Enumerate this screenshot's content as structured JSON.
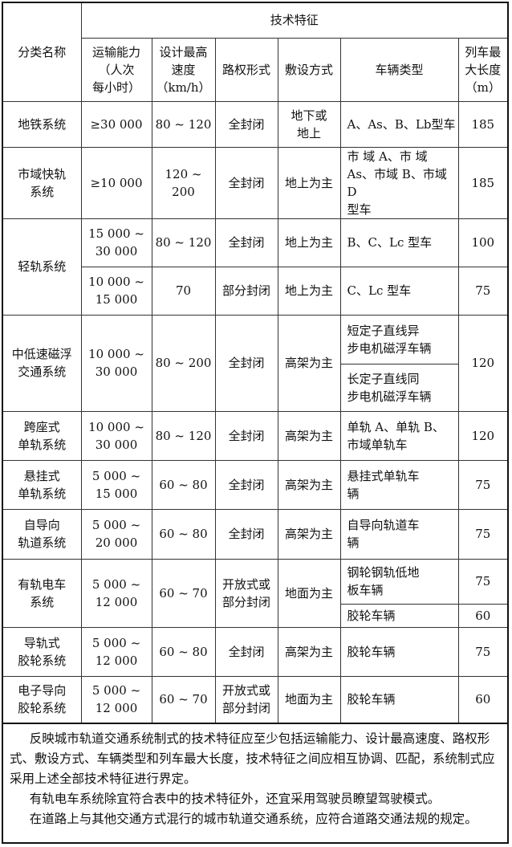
{
  "table": {
    "header": {
      "col_category": "分类名称",
      "group": "技术特征",
      "cols": [
        "运输能力\n（人次\n每小时）",
        "设计最高\n速度\n（km/h）",
        "路权形式",
        "敷设方式",
        "车辆类型",
        "列车最\n大长度\n（m）"
      ]
    },
    "rows": [
      [
        {
          "t": "地铁系统"
        },
        {
          "t": "≥30 000"
        },
        {
          "t": "80 ~ 120"
        },
        {
          "t": "全封闭"
        },
        {
          "t": "地下或\n地上"
        },
        {
          "t": "A、As、B、Lb型车",
          "v": 1
        },
        {
          "t": "185"
        }
      ],
      [
        {
          "t": "市域快轨\n系统"
        },
        {
          "t": "≥10 000"
        },
        {
          "t": "120 ~ 200"
        },
        {
          "t": "全封闭"
        },
        {
          "t": "地上为主"
        },
        {
          "t": "    市 域 A、市 域\nAs、市域 B、市域 D\n型车",
          "v": 1
        },
        {
          "t": "185"
        }
      ],
      [
        {
          "t": "轻轨系统",
          "rs": 2
        },
        {
          "t": "15 000 ~\n30 000"
        },
        {
          "t": "80 ~ 120"
        },
        {
          "t": "全封闭"
        },
        {
          "t": "地上为主"
        },
        {
          "t": "B、C、Lc 型车",
          "v": 1
        },
        {
          "t": "100"
        }
      ],
      [
        {
          "t": "10 000 ~\n15 000"
        },
        {
          "t": "70"
        },
        {
          "t": "部分封闭"
        },
        {
          "t": "地上为主"
        },
        {
          "t": "C、Lc 型车",
          "v": 1
        },
        {
          "t": "75"
        }
      ],
      [
        {
          "t": "中低速磁浮\n交通系统",
          "rs": 2
        },
        {
          "t": "10 000 ~\n30 000",
          "rs": 2
        },
        {
          "t": "80 ~ 200",
          "rs": 2
        },
        {
          "t": "全封闭",
          "rs": 2
        },
        {
          "t": "高架为主",
          "rs": 2
        },
        {
          "t": "    短定子直线异\n步电机磁浮车辆",
          "v": 1
        },
        {
          "t": "120",
          "rs": 2
        }
      ],
      [
        {
          "t": "    长定子直线同\n步电机磁浮车辆",
          "v": 1
        }
      ],
      [
        {
          "t": "跨座式\n单轨系统"
        },
        {
          "t": "10 000 ~\n30 000"
        },
        {
          "t": "80 ~ 120"
        },
        {
          "t": "全封闭"
        },
        {
          "t": "高架为主"
        },
        {
          "t": "单轨 A、单轨 B、\n市域单轨车",
          "v": 1
        },
        {
          "t": "120"
        }
      ],
      [
        {
          "t": "悬挂式\n单轨系统"
        },
        {
          "t": "5 000 ~\n15 000"
        },
        {
          "t": "60 ~ 80"
        },
        {
          "t": "全封闭"
        },
        {
          "t": "高架为主"
        },
        {
          "t": "    悬挂式单轨车\n辆",
          "v": 1
        },
        {
          "t": "75"
        }
      ],
      [
        {
          "t": "自导向\n轨道系统"
        },
        {
          "t": "5 000 ~\n20 000"
        },
        {
          "t": "60 ~ 80"
        },
        {
          "t": "全封闭"
        },
        {
          "t": "高架为主"
        },
        {
          "t": "    自导向轨道车\n辆",
          "v": 1
        },
        {
          "t": "75"
        }
      ],
      [
        {
          "t": "有轨电车\n系统",
          "rs": 2
        },
        {
          "t": "5 000 ~\n12 000",
          "rs": 2
        },
        {
          "t": "60 ~ 70",
          "rs": 2
        },
        {
          "t": "开放式或\n部分封闭",
          "rs": 2
        },
        {
          "t": "地面为主",
          "rs": 2
        },
        {
          "t": "钢轮钢轨低地\n板车辆",
          "v": 1
        },
        {
          "t": "75"
        }
      ],
      [
        {
          "t": "胶轮车辆",
          "v": 1
        },
        {
          "t": "60"
        }
      ],
      [
        {
          "t": "导轨式\n胶轮系统"
        },
        {
          "t": "5 000 ~\n12 000"
        },
        {
          "t": "60 ~ 80"
        },
        {
          "t": "全封闭"
        },
        {
          "t": "高架为主"
        },
        {
          "t": "胶轮车辆",
          "v": 1
        },
        {
          "t": "75"
        }
      ],
      [
        {
          "t": "电子导向\n胶轮系统"
        },
        {
          "t": "5 000 ~\n12 000"
        },
        {
          "t": "60 ~ 70"
        },
        {
          "t": "开放式或\n部分封闭"
        },
        {
          "t": "地面为主"
        },
        {
          "t": "胶轮车辆",
          "v": 1
        },
        {
          "t": "60"
        }
      ]
    ]
  },
  "notes": [
    "反映城市轨道交通系统制式的技术特征应至少包括运输能力、设计最高速度、路权形式、敷设方式、车辆类型和列车最大长度，技术特征之间应相互协调、匹配，系统制式应采用上述全部技术特征进行界定。",
    "有轨电车系统除宜符合表中的技术特征外，还宜采用驾驶员瞭望驾驶模式。",
    "在道路上与其他交通方式混行的城市轨道交通系统，应符合道路交通法规的规定。"
  ]
}
